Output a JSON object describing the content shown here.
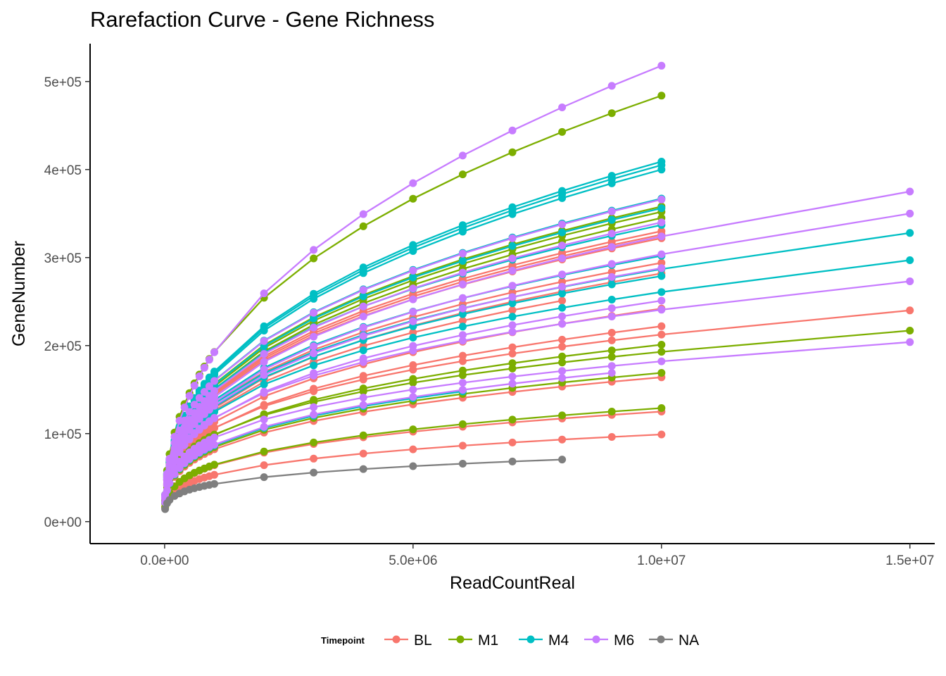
{
  "chart_data": {
    "type": "line",
    "title": "Rarefaction Curve - Gene Richness",
    "xlabel": "ReadCountReal",
    "ylabel": "GeneNumber",
    "xlim": [
      -1500000,
      15500000
    ],
    "ylim": [
      -25000,
      543000
    ],
    "x_ticks": [
      0,
      5000000,
      10000000,
      15000000
    ],
    "x_tick_labels": [
      "0.0e+00",
      "5.0e+06",
      "1.0e+07",
      "1.5e+07"
    ],
    "y_ticks": [
      0,
      100000,
      200000,
      300000,
      400000,
      500000
    ],
    "y_tick_labels": [
      "0e+00",
      "1e+05",
      "2e+05",
      "3e+05",
      "4e+05",
      "5e+05"
    ],
    "grid": false,
    "legend": {
      "title": "Timepoint",
      "position": "bottom",
      "entries": [
        {
          "name": "BL",
          "color": "#F8766D"
        },
        {
          "name": "M1",
          "color": "#7CAE00"
        },
        {
          "name": "M4",
          "color": "#00BFC4"
        },
        {
          "name": "M6",
          "color": "#C77CFF"
        },
        {
          "name": "NA",
          "color": "#7F7F7F"
        }
      ]
    },
    "x_points": [
      10000,
      50000,
      100000,
      200000,
      300000,
      400000,
      500000,
      600000,
      700000,
      800000,
      900000,
      1000000,
      2000000,
      3000000,
      4000000,
      5000000,
      6000000,
      7000000,
      8000000,
      9000000,
      10000000,
      15000000
    ],
    "curve_model": "GeneNumber = final_value * (ReadCountReal / end_depth) ^ exponent",
    "curves": [
      {
        "group": "M6",
        "end_depth": 10000000,
        "final_value": 518000,
        "exponent": 0.43
      },
      {
        "group": "M1",
        "end_depth": 10000000,
        "final_value": 484000,
        "exponent": 0.4
      },
      {
        "group": "M4",
        "end_depth": 10000000,
        "final_value": 409000,
        "exponent": 0.38
      },
      {
        "group": "M4",
        "end_depth": 10000000,
        "final_value": 405000,
        "exponent": 0.38
      },
      {
        "group": "M4",
        "end_depth": 10000000,
        "final_value": 400000,
        "exponent": 0.38
      },
      {
        "group": "M4",
        "end_depth": 10000000,
        "final_value": 367000,
        "exponent": 0.36
      },
      {
        "group": "M6",
        "end_depth": 10000000,
        "final_value": 366000,
        "exponent": 0.36
      },
      {
        "group": "M1",
        "end_depth": 10000000,
        "final_value": 358000,
        "exponent": 0.36
      },
      {
        "group": "M4",
        "end_depth": 10000000,
        "final_value": 356000,
        "exponent": 0.36
      },
      {
        "group": "M1",
        "end_depth": 10000000,
        "final_value": 352000,
        "exponent": 0.36
      },
      {
        "group": "M6",
        "end_depth": 15000000,
        "final_value": 375000,
        "exponent": 0.36
      },
      {
        "group": "M6",
        "end_depth": 15000000,
        "final_value": 350000,
        "exponent": 0.35
      },
      {
        "group": "M1",
        "end_depth": 10000000,
        "final_value": 345000,
        "exponent": 0.36
      },
      {
        "group": "M4",
        "end_depth": 10000000,
        "final_value": 337000,
        "exponent": 0.35
      },
      {
        "group": "M6",
        "end_depth": 10000000,
        "final_value": 340000,
        "exponent": 0.36
      },
      {
        "group": "BL",
        "end_depth": 10000000,
        "final_value": 330000,
        "exponent": 0.35
      },
      {
        "group": "BL",
        "end_depth": 10000000,
        "final_value": 326000,
        "exponent": 0.35
      },
      {
        "group": "BL",
        "end_depth": 10000000,
        "final_value": 322000,
        "exponent": 0.35
      },
      {
        "group": "M4",
        "end_depth": 15000000,
        "final_value": 328000,
        "exponent": 0.33
      },
      {
        "group": "M4",
        "end_depth": 10000000,
        "final_value": 302000,
        "exponent": 0.34
      },
      {
        "group": "M4",
        "end_depth": 15000000,
        "final_value": 297000,
        "exponent": 0.32
      },
      {
        "group": "BL",
        "end_depth": 10000000,
        "final_value": 294000,
        "exponent": 0.34
      },
      {
        "group": "M6",
        "end_depth": 10000000,
        "final_value": 288000,
        "exponent": 0.34
      },
      {
        "group": "BL",
        "end_depth": 10000000,
        "final_value": 282000,
        "exponent": 0.34
      },
      {
        "group": "M4",
        "end_depth": 10000000,
        "final_value": 279000,
        "exponent": 0.33
      },
      {
        "group": "M6",
        "end_depth": 15000000,
        "final_value": 273000,
        "exponent": 0.31
      },
      {
        "group": "BL",
        "end_depth": 8000000,
        "final_value": 251000,
        "exponent": 0.33
      },
      {
        "group": "M6",
        "end_depth": 10000000,
        "final_value": 251000,
        "exponent": 0.33
      },
      {
        "group": "BL",
        "end_depth": 10000000,
        "final_value": 242000,
        "exponent": 0.33
      },
      {
        "group": "BL",
        "end_depth": 15000000,
        "final_value": 240000,
        "exponent": 0.3
      },
      {
        "group": "BL",
        "end_depth": 10000000,
        "final_value": 222000,
        "exponent": 0.32
      },
      {
        "group": "M1",
        "end_depth": 15000000,
        "final_value": 217000,
        "exponent": 0.29
      },
      {
        "group": "M1",
        "end_depth": 10000000,
        "final_value": 201000,
        "exponent": 0.31
      },
      {
        "group": "M6",
        "end_depth": 15000000,
        "final_value": 204000,
        "exponent": 0.28
      },
      {
        "group": "M6",
        "end_depth": 9000000,
        "final_value": 169000,
        "exponent": 0.3
      },
      {
        "group": "M1",
        "end_depth": 10000000,
        "final_value": 169000,
        "exponent": 0.3
      },
      {
        "group": "BL",
        "end_depth": 10000000,
        "final_value": 164000,
        "exponent": 0.3
      },
      {
        "group": "M4",
        "end_depth": 6000000,
        "final_value": 148000,
        "exponent": 0.3
      },
      {
        "group": "M1",
        "end_depth": 10000000,
        "final_value": 129000,
        "exponent": 0.3
      },
      {
        "group": "BL",
        "end_depth": 10000000,
        "final_value": 125000,
        "exponent": 0.29
      },
      {
        "group": "BL",
        "end_depth": 10000000,
        "final_value": 99000,
        "exponent": 0.27
      },
      {
        "group": "NA",
        "end_depth": 8000000,
        "final_value": 70500,
        "exponent": 0.24
      }
    ]
  }
}
